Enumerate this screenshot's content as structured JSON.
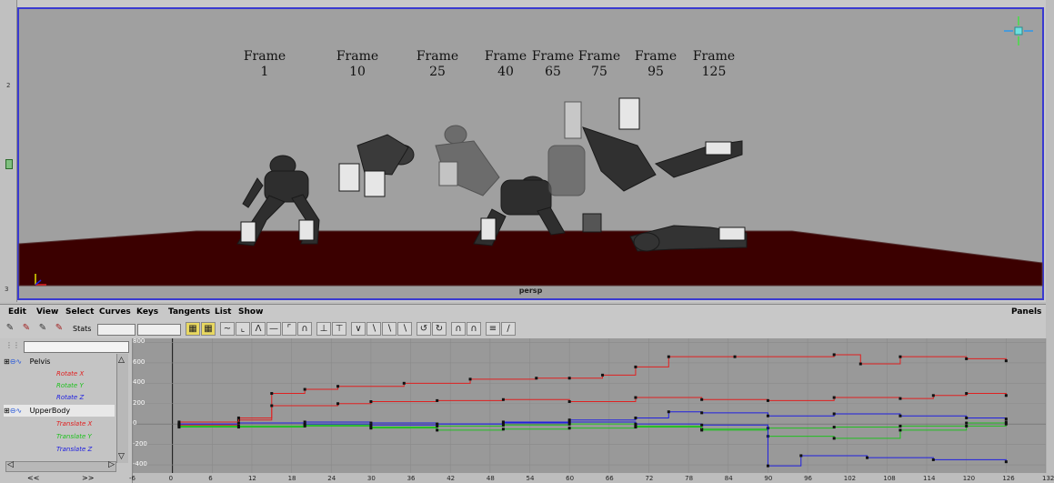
{
  "viewport": {
    "frame_labels": [
      {
        "line1": "Frame",
        "line2": "1"
      },
      {
        "line1": "Frame",
        "line2": "10"
      },
      {
        "line1": "Frame",
        "line2": "25"
      },
      {
        "line1": "Frame",
        "line2": "40"
      },
      {
        "line1": "Frame",
        "line2": "65"
      },
      {
        "line1": "Frame",
        "line2": "75"
      },
      {
        "line1": "Frame",
        "line2": "95"
      },
      {
        "line1": "Frame",
        "line2": "125"
      }
    ],
    "camera_label": "persp",
    "colors": {
      "background": "#a0a0a0",
      "floor": "#3b0000",
      "border": "#3a3ad0"
    }
  },
  "menu": {
    "items": [
      "Edit",
      "View",
      "Select",
      "Curves",
      "Keys",
      "Tangents",
      "List",
      "Show"
    ],
    "panels": "Panels"
  },
  "toolbar": {
    "stats_label": "Stats",
    "stats_value_1": "",
    "stats_value_2": ""
  },
  "outliner": {
    "filter_value": "",
    "nodes": [
      {
        "name": "Pelvis",
        "channels": [
          {
            "name": "Rotate X",
            "color": "#e02020"
          },
          {
            "name": "Rotate Y",
            "color": "#20c020"
          },
          {
            "name": "Rotate Z",
            "color": "#2020e0"
          }
        ]
      },
      {
        "name": "UpperBody",
        "channels": [
          {
            "name": "Translate X",
            "color": "#e02020"
          },
          {
            "name": "Translate Y",
            "color": "#20c020"
          },
          {
            "name": "Translate Z",
            "color": "#2020e0"
          }
        ]
      }
    ],
    "scroll_left": "<<",
    "scroll_right": ">>"
  },
  "chart_data": {
    "type": "line",
    "xticks": [
      "-6",
      "0",
      "6",
      "12",
      "18",
      "24",
      "30",
      "36",
      "42",
      "48",
      "54",
      "60",
      "66",
      "72",
      "78",
      "84",
      "90",
      "96",
      "102",
      "108",
      "114",
      "120",
      "126",
      "132"
    ],
    "yticks": [
      "800",
      "600",
      "400",
      "200",
      "0",
      "-200",
      "-400"
    ],
    "xlim": [
      -6,
      132
    ],
    "ylim": [
      -480,
      840
    ],
    "series": [
      {
        "name": "Rotate X",
        "color": "#e02020",
        "x": [
          1,
          10,
          15,
          20,
          25,
          35,
          45,
          55,
          60,
          65,
          70,
          75,
          85,
          100,
          104,
          110,
          120,
          126
        ],
        "y": [
          -10,
          40,
          300,
          340,
          370,
          400,
          440,
          450,
          450,
          480,
          560,
          660,
          660,
          680,
          590,
          660,
          640,
          620
        ]
      },
      {
        "name": "Rotate Y",
        "color": "#20c020",
        "x": [
          1,
          10,
          20,
          30,
          40,
          50,
          60,
          70,
          80,
          90,
          100,
          110,
          120,
          126
        ],
        "y": [
          -20,
          -30,
          -20,
          -40,
          -60,
          -50,
          -40,
          -30,
          -50,
          -40,
          -30,
          -20,
          10,
          20
        ]
      },
      {
        "name": "Rotate Z",
        "color": "#2020e0",
        "x": [
          1,
          10,
          20,
          30,
          40,
          50,
          60,
          70,
          75,
          80,
          90,
          100,
          110,
          120,
          126
        ],
        "y": [
          0,
          10,
          20,
          10,
          0,
          20,
          40,
          60,
          120,
          110,
          80,
          100,
          80,
          60,
          50
        ]
      },
      {
        "name": "Translate X",
        "color": "#e02020",
        "x": [
          1,
          10,
          15,
          25,
          30,
          40,
          50,
          60,
          70,
          80,
          90,
          100,
          110,
          115,
          120,
          126
        ],
        "y": [
          20,
          60,
          180,
          200,
          220,
          230,
          240,
          220,
          260,
          240,
          230,
          260,
          250,
          280,
          300,
          280
        ]
      },
      {
        "name": "Translate Y",
        "color": "#20c020",
        "x": [
          1,
          10,
          20,
          30,
          40,
          50,
          60,
          70,
          80,
          90,
          100,
          110,
          120,
          126
        ],
        "y": [
          -30,
          -20,
          -10,
          -30,
          -20,
          -10,
          0,
          -20,
          -60,
          -120,
          -140,
          -60,
          -20,
          0
        ]
      },
      {
        "name": "Translate Z",
        "color": "#2020e0",
        "x": [
          1,
          10,
          20,
          30,
          40,
          50,
          60,
          70,
          80,
          90,
          95,
          105,
          115,
          126
        ],
        "y": [
          0,
          10,
          0,
          -10,
          0,
          10,
          20,
          0,
          -10,
          -410,
          -310,
          -330,
          -350,
          -370
        ]
      }
    ]
  }
}
